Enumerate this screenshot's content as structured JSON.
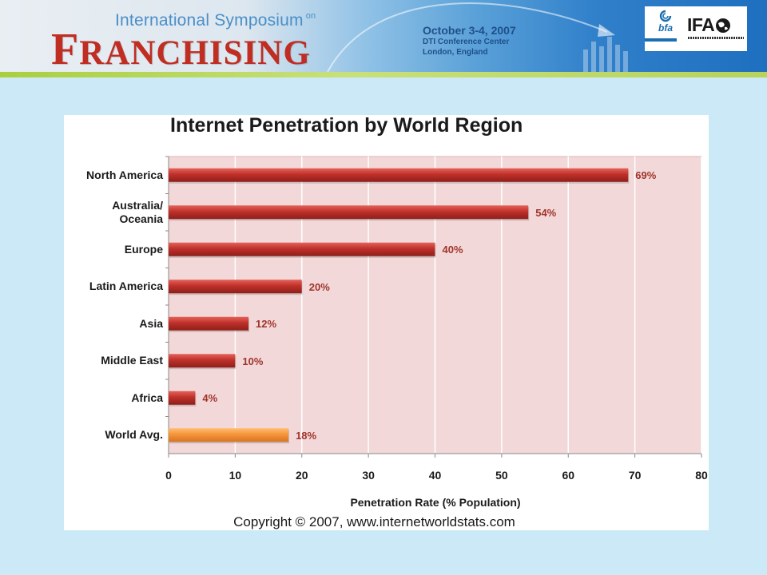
{
  "header": {
    "symposium": "International Symposium",
    "symposium_on": "on",
    "franchising_first": "F",
    "franchising_rest": "RANCHISING",
    "event_date": "October 3-4, 2007",
    "venue": "DTI Conference Center",
    "location": "London, England",
    "logo_bfa": "bfa",
    "logo_ifa": "IFA"
  },
  "colors": {
    "bar": "#c0302a",
    "bar_highlight": "#f5953a",
    "plot_bg": "#f2d8d8",
    "value_label": "#a0342c"
  },
  "chart_data": {
    "type": "bar",
    "orientation": "horizontal",
    "title": "Internet Penetration by World Region",
    "xlabel": "Penetration Rate (% Population)",
    "ylabel": "",
    "xlim": [
      0,
      80
    ],
    "xticks": [
      0,
      10,
      20,
      30,
      40,
      50,
      60,
      70,
      80
    ],
    "categories": [
      "North America",
      "Australia/\nOceania",
      "Europe",
      "Latin America",
      "Asia",
      "Middle East",
      "Africa",
      "World Avg."
    ],
    "values": [
      69,
      54,
      40,
      20,
      12,
      10,
      4,
      18
    ],
    "value_labels": [
      "69%",
      "54%",
      "40%",
      "20%",
      "12%",
      "10%",
      "4%",
      "18%"
    ],
    "highlight": "World Avg.",
    "grid": true
  },
  "footer": {
    "copyright": "Copyright © 2007, www.internetworldstats.com"
  }
}
